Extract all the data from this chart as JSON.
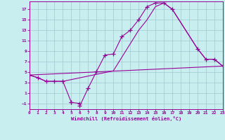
{
  "xlabel": "Windchill (Refroidissement éolien,°C)",
  "background_color": "#c8eef0",
  "grid_color": "#a0c8d0",
  "line_color": "#990099",
  "xlim": [
    0,
    23
  ],
  "ylim": [
    -2,
    18.5
  ],
  "xticks": [
    0,
    1,
    2,
    3,
    4,
    5,
    6,
    7,
    8,
    9,
    10,
    11,
    12,
    13,
    14,
    15,
    16,
    17,
    18,
    19,
    20,
    21,
    22,
    23
  ],
  "yticks": [
    -1,
    1,
    3,
    5,
    7,
    9,
    11,
    13,
    15,
    17
  ],
  "line1_x": [
    0,
    1,
    2,
    3,
    4,
    5,
    5,
    6,
    6,
    7,
    8,
    9,
    10,
    11,
    12,
    13,
    14,
    15,
    16,
    17,
    20,
    21,
    22,
    23
  ],
  "line1_y": [
    4.5,
    4.0,
    3.3,
    3.3,
    3.3,
    -0.7,
    -0.7,
    -0.9,
    -1.4,
    2.0,
    5.2,
    8.3,
    8.5,
    11.8,
    13.0,
    15.0,
    17.5,
    18.2,
    18.2,
    17.0,
    9.5,
    7.5,
    7.5,
    6.2
  ],
  "line2_x": [
    0,
    1,
    2,
    3,
    4,
    10,
    13,
    14,
    15,
    16,
    17,
    20,
    21,
    22,
    23
  ],
  "line2_y": [
    4.5,
    4.0,
    3.3,
    3.3,
    3.3,
    5.3,
    13.0,
    15.0,
    17.5,
    18.2,
    17.0,
    9.5,
    7.5,
    7.5,
    6.2
  ],
  "line3_x": [
    0,
    23
  ],
  "line3_y": [
    4.5,
    6.2
  ]
}
